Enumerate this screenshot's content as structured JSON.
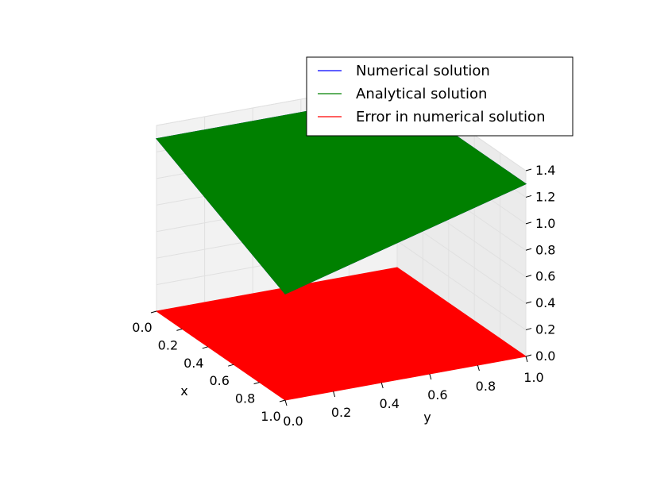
{
  "chart_data": {
    "type": "surface3d",
    "title": "",
    "xlabel": "x",
    "ylabel": "y",
    "zlabel": "",
    "xlim": [
      0.0,
      1.0
    ],
    "ylim": [
      0.0,
      1.0
    ],
    "zlim": [
      0.0,
      1.4
    ],
    "x_ticks": [
      "0.0",
      "0.2",
      "0.4",
      "0.6",
      "0.8",
      "1.0"
    ],
    "y_ticks": [
      "0.0",
      "0.2",
      "0.4",
      "0.6",
      "0.8",
      "1.0"
    ],
    "z_ticks": [
      "0.0",
      "0.2",
      "0.4",
      "0.6",
      "0.8",
      "1.0",
      "1.2",
      "1.4"
    ],
    "grid": true,
    "legend_position": "top-right",
    "series": [
      {
        "name": "Numerical solution",
        "color": "#0000ff",
        "corner_values": {
          "x0y0": 1.3,
          "x1y0": 0.8,
          "x0y1": 1.3,
          "x1y1": 1.3
        }
      },
      {
        "name": "Analytical solution",
        "color": "#008000",
        "corner_values": {
          "x0y0": 1.3,
          "x1y0": 0.8,
          "x0y1": 1.3,
          "x1y1": 1.3
        }
      },
      {
        "name": "Error in numerical solution",
        "color": "#ff0000",
        "corner_values": {
          "x0y0": 0.0,
          "x1y0": 0.0,
          "x0y1": 0.0,
          "x1y1": 0.0
        }
      }
    ]
  }
}
